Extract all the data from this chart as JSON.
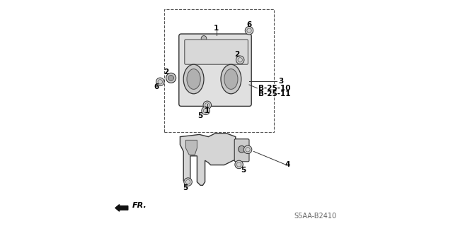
{
  "bg_color": "#ffffff",
  "diagram_code": "S5AA-B2410",
  "fr_label": "FR.",
  "text_color": "#000000",
  "line_color": "#333333",
  "dark_color": "#111111",
  "gray1": "#e0e0e0",
  "gray2": "#c8c8c8",
  "gray3": "#b0b0b0",
  "gray4": "#d0d0d0",
  "gray5": "#d5d5d5",
  "gray6": "#555555",
  "b2510": "B-25-10",
  "b2511": "B-25-11",
  "font_size": 7.5,
  "code_font_size": 7.0
}
